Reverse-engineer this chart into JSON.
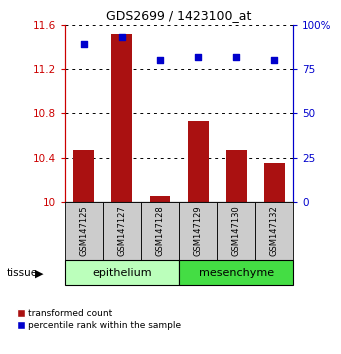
{
  "title": "GDS2699 / 1423100_at",
  "samples": [
    "GSM147125",
    "GSM147127",
    "GSM147128",
    "GSM147129",
    "GSM147130",
    "GSM147132"
  ],
  "transformed_counts": [
    10.47,
    11.52,
    10.05,
    10.73,
    10.47,
    10.35
  ],
  "percentile_ranks": [
    89,
    93,
    80,
    82,
    82,
    80
  ],
  "ylim_left": [
    10.0,
    11.6
  ],
  "ylim_right": [
    0,
    100
  ],
  "yticks_left": [
    10.0,
    10.4,
    10.8,
    11.2,
    11.6
  ],
  "yticks_right": [
    0,
    25,
    50,
    75,
    100
  ],
  "ytick_labels_left": [
    "10",
    "10.4",
    "10.8",
    "11.2",
    "11.6"
  ],
  "ytick_labels_right": [
    "0",
    "25",
    "50",
    "75",
    "100%"
  ],
  "bar_color": "#aa1111",
  "dot_color": "#0000cc",
  "tissue_groups": [
    {
      "label": "epithelium",
      "start": 0,
      "end": 3,
      "color": "#bbffbb"
    },
    {
      "label": "mesenchyme",
      "start": 3,
      "end": 6,
      "color": "#44dd44"
    }
  ],
  "sample_box_color": "#cccccc",
  "tissue_label": "tissue",
  "legend_items": [
    {
      "label": "transformed count",
      "color": "#aa1111"
    },
    {
      "label": "percentile rank within the sample",
      "color": "#0000cc"
    }
  ],
  "bar_width": 0.55,
  "left_axis_color": "#cc0000",
  "right_axis_color": "#0000cc",
  "title_fontsize": 9
}
